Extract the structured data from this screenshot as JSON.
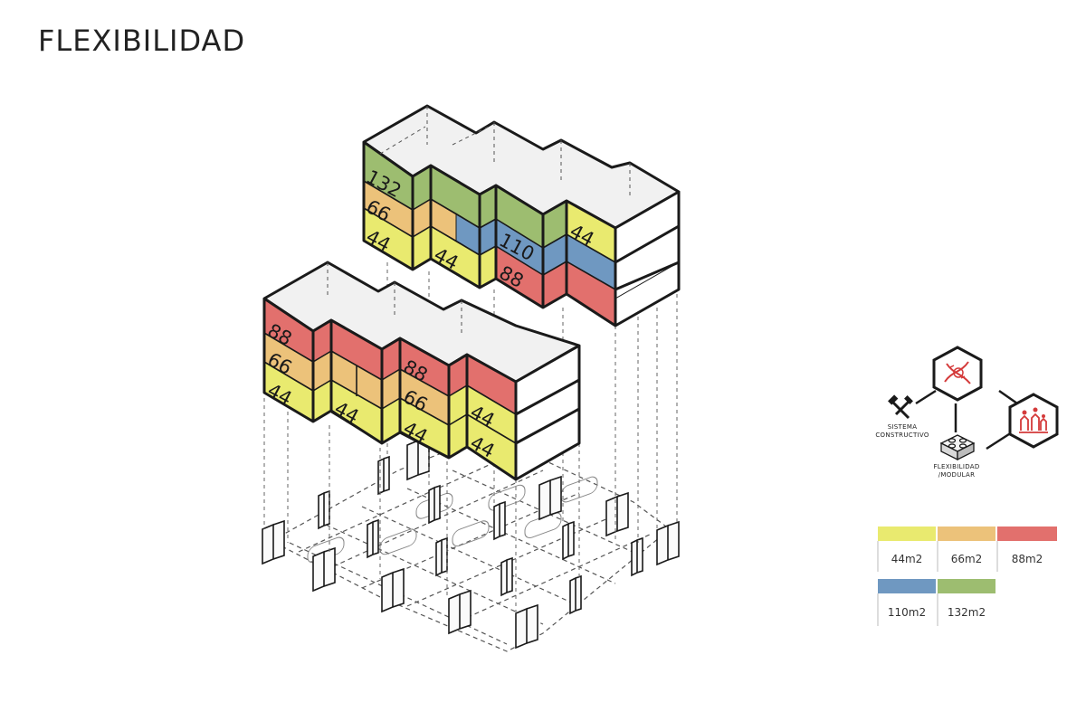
{
  "title": "FLEXIBILIDAD",
  "colors": {
    "yellow": "#e9ea6f",
    "orange": "#ecc27a",
    "red": "#e2706d",
    "blue": "#6f98c1",
    "green": "#9dbd70",
    "outline": "#1a1a1a",
    "roof": "#efefef"
  },
  "units": {
    "upper_132": "132",
    "upper_66": "66",
    "upper_44_a": "44",
    "upper_44_b": "44",
    "upper_110": "110",
    "upper_88": "88",
    "upper_44_c": "44",
    "lower_88_a": "88",
    "lower_66_a": "66",
    "lower_44_a": "44",
    "lower_44_b": "44",
    "lower_88_b": "88",
    "lower_66_b": "66",
    "lower_44_c": "44",
    "lower_44_d": "44",
    "lower_44_e": "44"
  },
  "icons": {
    "sistema_line1": "SISTEMA",
    "sistema_line2": "CONSTRUCTIVO",
    "flex_line1": "FLEXIBILIDAD",
    "flex_line2": "/MODULAR",
    "dna_icon": "dna-icon",
    "tools_icon": "hammer-saw-icon",
    "lego_icon": "lego-brick-icon",
    "people_icon": "people-icon"
  },
  "legend": [
    {
      "label": "44m2",
      "color": "#e9ea6f"
    },
    {
      "label": "66m2",
      "color": "#ecc27a"
    },
    {
      "label": "88m2",
      "color": "#e2706d"
    },
    {
      "label": "110m2",
      "color": "#6f98c1"
    },
    {
      "label": "132m2",
      "color": "#9dbd70"
    }
  ]
}
